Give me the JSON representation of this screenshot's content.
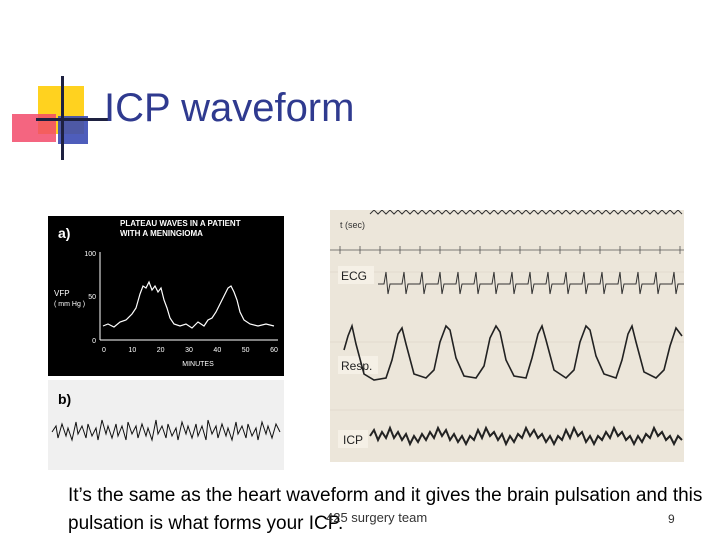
{
  "slide": {
    "title": "ICP waveform",
    "caption": "It’s the same as the heart waveform and it gives the brain pulsation and this pulsation is what forms your ICP.",
    "footer": "425 surgery team",
    "page_number": "9"
  },
  "left_image": {
    "panel_a_label": "a)",
    "panel_b_label": "b)",
    "heading_line1": "PLATEAU WAVES IN A PATIENT",
    "heading_line2": "WITH A MENINGIOMA",
    "y_axis_label_line1": "VFP",
    "y_axis_label_line2": "( mm Hg )",
    "y_ticks": [
      "100",
      "50",
      "0"
    ],
    "x_ticks": [
      "0",
      "10",
      "20",
      "30",
      "40",
      "50",
      "60"
    ],
    "x_axis_label": "MINUTES"
  },
  "right_image": {
    "time_label": "t (sec)",
    "ecg_label": "ECG",
    "resp_label": "Resp.",
    "icp_label": "ICP"
  }
}
